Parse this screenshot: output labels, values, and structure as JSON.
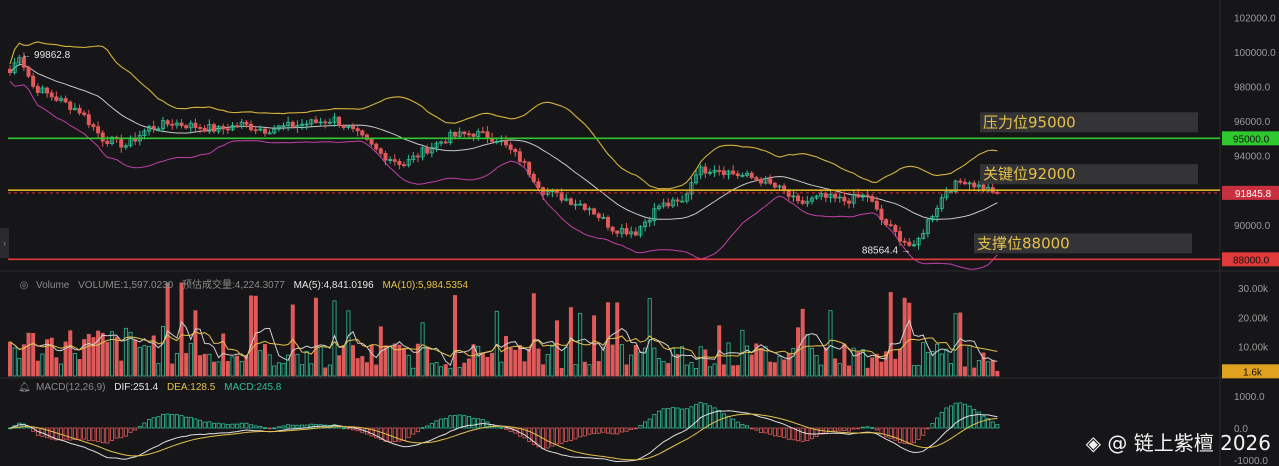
{
  "chart_data": {
    "type": "candlestick",
    "price_axis": {
      "ticks": [
        "102000.0",
        "100000.0",
        "98000.0",
        "96000.0",
        "94000.0",
        "92000.0",
        "90000.0"
      ],
      "tick_values": [
        102000,
        100000,
        98000,
        96000,
        94000,
        92000,
        90000
      ],
      "range": [
        87500,
        103000
      ]
    },
    "current_price": {
      "label": "91845.8",
      "value": 91845.8,
      "color": "#c9303f"
    },
    "high_marker": {
      "label": "← 99862.8",
      "value": 99862.8
    },
    "low_marker": {
      "label": "88564.4 →",
      "value": 88564.4
    },
    "levels": [
      {
        "name": "压力位95000",
        "value": 95000,
        "label": "95000.0",
        "color": "#2fc82f"
      },
      {
        "name": "关键位92000",
        "value": 92000,
        "label": "",
        "color": "#e0b020"
      },
      {
        "name": "支撑位88000",
        "value": 88000,
        "label": "88000.0",
        "color": "#e23a3a"
      }
    ],
    "volume": {
      "legend": {
        "title": "Volume",
        "volume": "VOLUME:1,597.0230",
        "est": "预估成交量:4,224.3077",
        "ma5": "MA(5):4,841.0196",
        "ma10": "MA(10):5,984.5354"
      },
      "ticks": [
        "30.00k",
        "20.00k",
        "10.00k"
      ],
      "tick_values": [
        30000,
        20000,
        10000
      ],
      "current_label": "1.6k",
      "current_value": 1597
    },
    "macd": {
      "legend": {
        "title": "MACD(12,26,9)",
        "dif": "DIF:251.4",
        "dea": "DEA:128.5",
        "macd": "MACD:245.8"
      },
      "ticks": [
        "1000.0",
        "0.0",
        "-1000.0"
      ],
      "tick_values": [
        1000,
        0,
        -1000
      ]
    },
    "colors": {
      "up": "#2fbf95",
      "down": "#e05a5a",
      "bb_upper": "#d4b23c",
      "bb_mid": "#c8c8c8",
      "bb_lower": "#c040a8",
      "vol_ma5": "#e5c14a",
      "vol_ma10": "#d0d0d0",
      "dif": "#e0e0e0",
      "dea": "#e5c14a"
    },
    "price_curve_keypoints": [
      [
        0,
        98800
      ],
      [
        2,
        99862
      ],
      [
        5,
        98000
      ],
      [
        10,
        97300
      ],
      [
        15,
        96600
      ],
      [
        20,
        95000
      ],
      [
        25,
        94600
      ],
      [
        30,
        95600
      ],
      [
        35,
        95900
      ],
      [
        40,
        95700
      ],
      [
        45,
        95500
      ],
      [
        50,
        95800
      ],
      [
        55,
        95500
      ],
      [
        60,
        95700
      ],
      [
        65,
        95900
      ],
      [
        70,
        96100
      ],
      [
        75,
        95200
      ],
      [
        80,
        94100
      ],
      [
        85,
        93500
      ],
      [
        90,
        94400
      ],
      [
        95,
        95100
      ],
      [
        100,
        95300
      ],
      [
        105,
        95000
      ],
      [
        110,
        93800
      ],
      [
        115,
        92000
      ],
      [
        120,
        91500
      ],
      [
        125,
        91000
      ],
      [
        130,
        89800
      ],
      [
        135,
        89600
      ],
      [
        140,
        91100
      ],
      [
        145,
        91300
      ],
      [
        148,
        93100
      ],
      [
        152,
        93300
      ],
      [
        157,
        92900
      ],
      [
        162,
        92600
      ],
      [
        167,
        91900
      ],
      [
        170,
        91200
      ],
      [
        175,
        91600
      ],
      [
        180,
        91400
      ],
      [
        185,
        91700
      ],
      [
        188,
        90300
      ],
      [
        191,
        89500
      ],
      [
        195,
        88600
      ],
      [
        198,
        90200
      ],
      [
        202,
        92000
      ],
      [
        206,
        92600
      ],
      [
        210,
        92100
      ],
      [
        213,
        91900
      ]
    ]
  },
  "watermark": "◈ @ 链上紫檀 2026"
}
